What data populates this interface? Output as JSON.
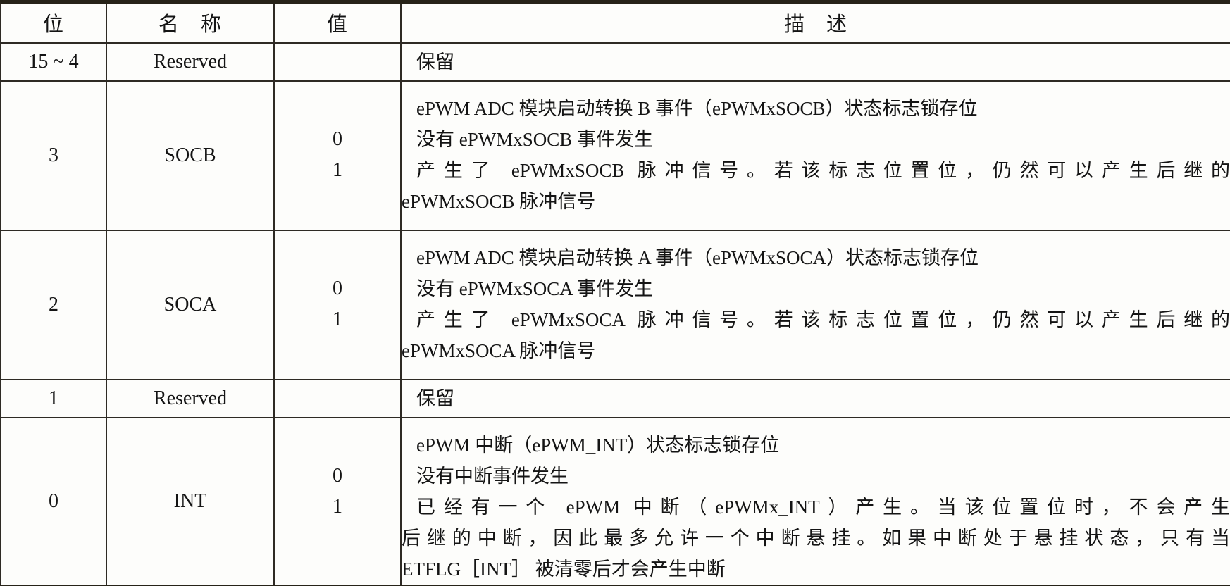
{
  "colors": {
    "border": "#2e2a24",
    "thick": "#272318",
    "text": "#141414",
    "bg": "#fdfdfb"
  },
  "table": {
    "headers": [
      {
        "id": "bit",
        "label": "位"
      },
      {
        "id": "name",
        "label": "名　称"
      },
      {
        "id": "value",
        "label": "值"
      },
      {
        "id": "desc",
        "label": "描　述"
      }
    ],
    "rows": [
      {
        "kind": "reserved",
        "bit": "15 ~ 4",
        "name": "Reserved",
        "values": [],
        "desc": [
          {
            "text": "保留",
            "first": true,
            "full": false
          }
        ]
      },
      {
        "kind": "socb",
        "bit": "3",
        "name": "SOCB",
        "values": [
          "0",
          "1"
        ],
        "desc": [
          {
            "text": "ePWM ADC 模块启动转换 B 事件（ePWMxSOCB）状态标志锁存位",
            "first": true,
            "full": false
          },
          {
            "text": "没有 ePWMxSOCB 事件发生",
            "first": true,
            "full": false
          },
          {
            "text": "产生了 ePWMxSOCB 脉冲信号。若该标志位置位，仍然可以产生后继的",
            "first": true,
            "full": true
          },
          {
            "text": "ePWMxSOCB 脉冲信号",
            "first": false,
            "full": false
          }
        ]
      },
      {
        "kind": "soca",
        "bit": "2",
        "name": "SOCA",
        "values": [
          "0",
          "1"
        ],
        "desc": [
          {
            "text": "ePWM ADC 模块启动转换 A 事件（ePWMxSOCA）状态标志锁存位",
            "first": true,
            "full": false
          },
          {
            "text": "没有 ePWMxSOCA 事件发生",
            "first": true,
            "full": false
          },
          {
            "text": "产生了 ePWMxSOCA 脉冲信号。若该标志位置位，仍然可以产生后继的",
            "first": true,
            "full": true
          },
          {
            "text": "ePWMxSOCA 脉冲信号",
            "first": false,
            "full": false
          }
        ]
      },
      {
        "kind": "reserved",
        "bit": "1",
        "name": "Reserved",
        "values": [],
        "desc": [
          {
            "text": "保留",
            "first": true,
            "full": false
          }
        ]
      },
      {
        "kind": "int",
        "bit": "0",
        "name": "INT",
        "values": [
          "0",
          "1"
        ],
        "desc": [
          {
            "text": "ePWM 中断（ePWM_INT）状态标志锁存位",
            "first": true,
            "full": false
          },
          {
            "text": "没有中断事件发生",
            "first": true,
            "full": false
          },
          {
            "text": "已经有一个 ePWM 中断（ePWMx_INT）产生。当该位置位时，不会产生",
            "first": true,
            "full": true
          },
          {
            "text": "后继的中断，因此最多允许一个中断悬挂。如果中断处于悬挂状态，只有当",
            "first": false,
            "full": true
          },
          {
            "text": "ETFLG［INT］ 被清零后才会产生中断",
            "first": false,
            "full": false
          }
        ]
      }
    ]
  }
}
